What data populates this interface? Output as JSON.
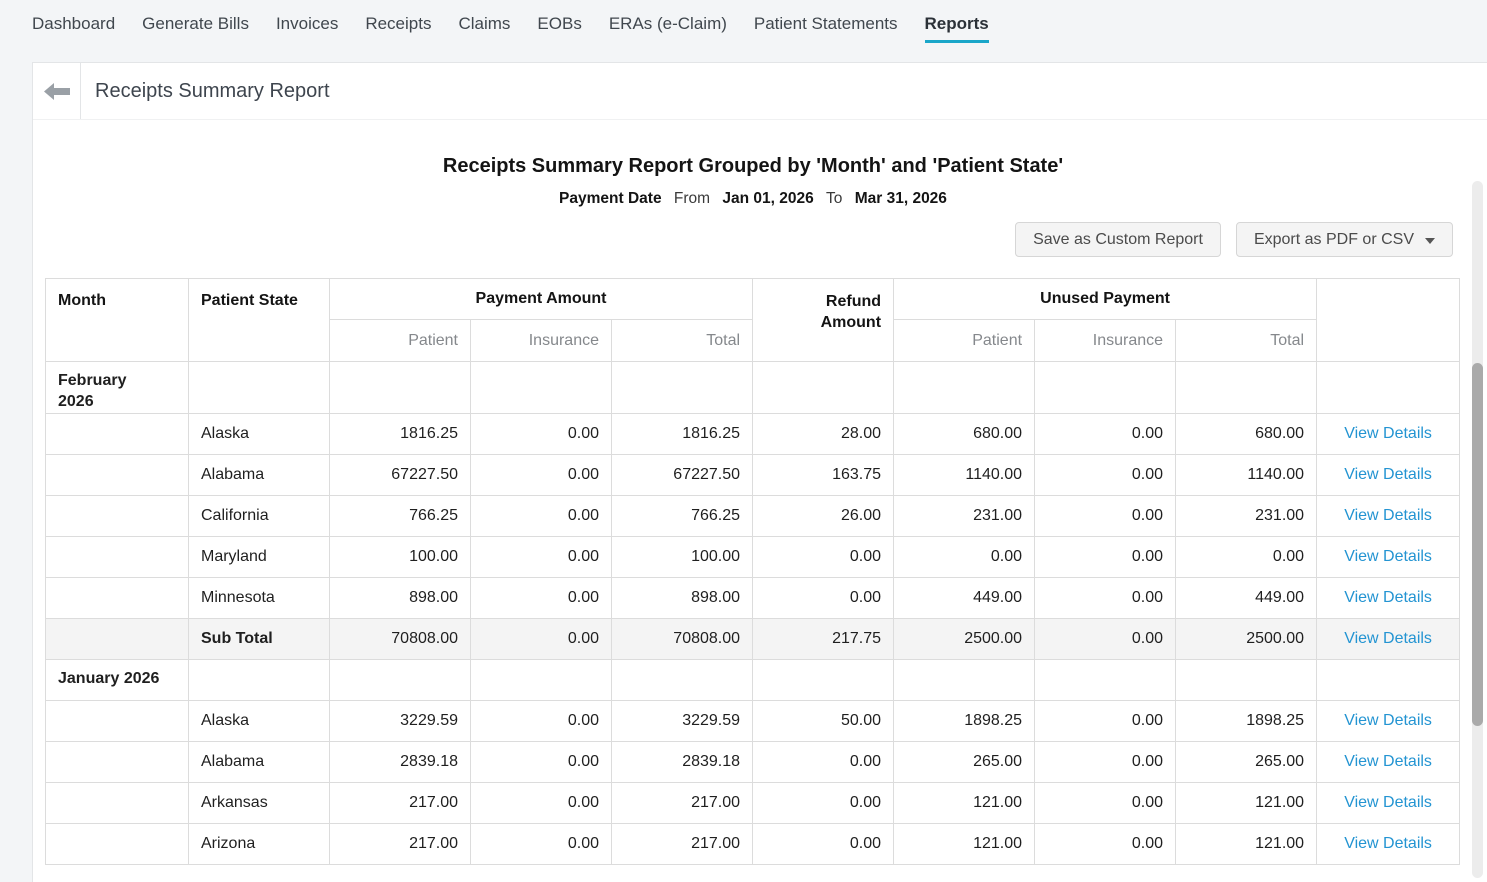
{
  "nav": {
    "items": [
      {
        "label": "Dashboard"
      },
      {
        "label": "Generate Bills"
      },
      {
        "label": "Invoices"
      },
      {
        "label": "Receipts"
      },
      {
        "label": "Claims"
      },
      {
        "label": "EOBs"
      },
      {
        "label": "ERAs (e-Claim)"
      },
      {
        "label": "Patient Statements"
      },
      {
        "label": "Reports",
        "active": true
      }
    ],
    "active_underline_color": "#1aa6c9"
  },
  "header": {
    "title": "Receipts Summary Report"
  },
  "report": {
    "title": "Receipts Summary Report Grouped by 'Month' and 'Patient State'",
    "date_filter": {
      "field_label": "Payment Date",
      "from_label": "From",
      "from_value": "Jan 01, 2026",
      "to_label": "To",
      "to_value": "Mar 31, 2026"
    },
    "actions": {
      "save_label": "Save as Custom Report",
      "export_label": "Export as PDF or CSV"
    }
  },
  "table": {
    "headers": {
      "month": "Month",
      "patient_state": "Patient State",
      "payment_amount": "Payment Amount",
      "refund_amount": "Refund Amount",
      "unused_payment": "Unused Payment",
      "sub": [
        "Patient",
        "Insurance",
        "Total"
      ]
    },
    "view_details_label": "View Details",
    "link_color": "#2394d2",
    "rows": [
      {
        "type": "month",
        "month": "February 2026"
      },
      {
        "type": "data",
        "state": "Alaska",
        "values": [
          "1816.25",
          "0.00",
          "1816.25",
          "28.00",
          "680.00",
          "0.00",
          "680.00"
        ]
      },
      {
        "type": "data",
        "state": "Alabama",
        "values": [
          "67227.50",
          "0.00",
          "67227.50",
          "163.75",
          "1140.00",
          "0.00",
          "1140.00"
        ]
      },
      {
        "type": "data",
        "state": "California",
        "values": [
          "766.25",
          "0.00",
          "766.25",
          "26.00",
          "231.00",
          "0.00",
          "231.00"
        ]
      },
      {
        "type": "data",
        "state": "Maryland",
        "values": [
          "100.00",
          "0.00",
          "100.00",
          "0.00",
          "0.00",
          "0.00",
          "0.00"
        ]
      },
      {
        "type": "data",
        "state": "Minnesota",
        "values": [
          "898.00",
          "0.00",
          "898.00",
          "0.00",
          "449.00",
          "0.00",
          "449.00"
        ]
      },
      {
        "type": "subtotal",
        "state": "Sub Total",
        "values": [
          "70808.00",
          "0.00",
          "70808.00",
          "217.75",
          "2500.00",
          "0.00",
          "2500.00"
        ]
      },
      {
        "type": "month",
        "month": "January 2026"
      },
      {
        "type": "data",
        "state": "Alaska",
        "values": [
          "3229.59",
          "0.00",
          "3229.59",
          "50.00",
          "1898.25",
          "0.00",
          "1898.25"
        ]
      },
      {
        "type": "data",
        "state": "Alabama",
        "values": [
          "2839.18",
          "0.00",
          "2839.18",
          "0.00",
          "265.00",
          "0.00",
          "265.00"
        ]
      },
      {
        "type": "data",
        "state": "Arkansas",
        "values": [
          "217.00",
          "0.00",
          "217.00",
          "0.00",
          "121.00",
          "0.00",
          "121.00"
        ]
      },
      {
        "type": "data",
        "state": "Arizona",
        "values": [
          "217.00",
          "0.00",
          "217.00",
          "0.00",
          "121.00",
          "0.00",
          "121.00"
        ]
      }
    ]
  }
}
